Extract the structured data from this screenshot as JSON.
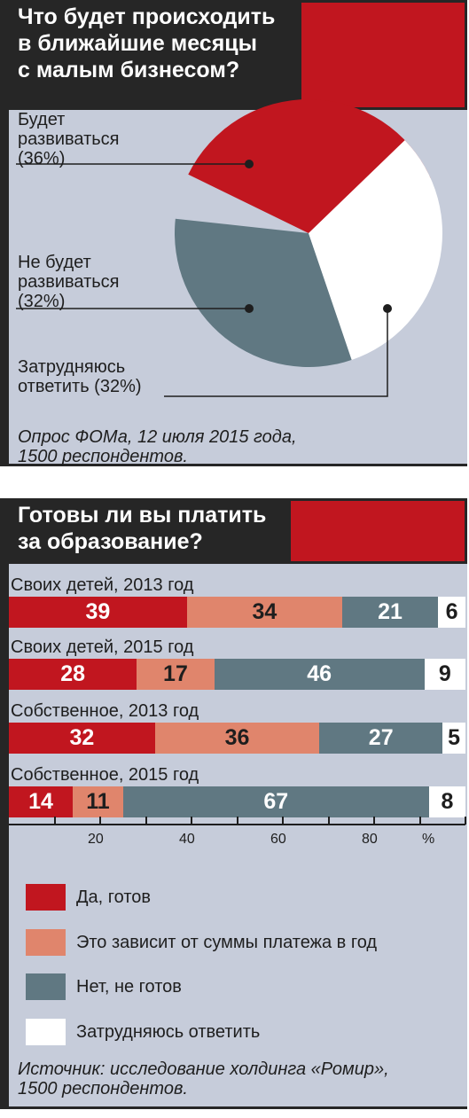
{
  "colors": {
    "red": "#c1161f",
    "salmon": "#e0856c",
    "slate": "#607882",
    "white": "#ffffff",
    "dark": "#262626",
    "panel": "#c6ccda"
  },
  "chart1": {
    "title_line1": "Что будет происходить",
    "title_line2": "в ближайшие месяцы",
    "title_line3": "с малым бизнесом?",
    "labels": [
      {
        "l1": "Будет",
        "l2": "развиваться",
        "l3": "(36%)"
      },
      {
        "l1": "Не будет",
        "l2": "развиваться",
        "l3": "(32%)"
      },
      {
        "l1": "Затрудняюсь",
        "l2": "ответить (32%)"
      }
    ],
    "source_line1": "Опрос ФОМа, 12 июля 2015 года,",
    "source_line2": "1500 респондентов."
  },
  "chart2": {
    "title_line1": "Готовы ли вы платить",
    "title_line2": "за образование?",
    "rows": [
      "Своих детей, 2013 год",
      "Своих детей, 2015 год",
      "Собственное, 2013 год",
      "Собственное, 2015 год"
    ],
    "ticks": [
      "20",
      "40",
      "60",
      "80",
      "%"
    ],
    "legend": [
      "Да, готов",
      "Это зависит от суммы платежа в год",
      "Нет, не готов",
      "Затрудняюсь ответить"
    ],
    "source_line1": "Источник: исследование холдинга «Ромир»,",
    "source_line2": "1500 респондентов."
  },
  "chart_data": [
    {
      "type": "pie",
      "title": "Что будет происходить в ближайшие месяцы с малым бизнесом?",
      "categories": [
        "Будет развиваться",
        "Не будет развиваться",
        "Затрудняюсь ответить"
      ],
      "values": [
        36,
        32,
        32
      ],
      "colors": [
        "#c1161f",
        "#607882",
        "#ffffff"
      ]
    },
    {
      "type": "bar",
      "stacked": true,
      "orientation": "horizontal",
      "title": "Готовы ли вы платить за образование?",
      "categories": [
        "Своих детей, 2013 год",
        "Своих детей, 2015 год",
        "Собственное, 2013 год",
        "Собственное, 2015 год"
      ],
      "series": [
        {
          "name": "Да, готов",
          "values": [
            39,
            28,
            32,
            14
          ]
        },
        {
          "name": "Это зависит от суммы платежа в год",
          "values": [
            34,
            17,
            36,
            11
          ]
        },
        {
          "name": "Нет, не готов",
          "values": [
            21,
            46,
            27,
            67
          ]
        },
        {
          "name": "Затрудняюсь ответить",
          "values": [
            6,
            9,
            5,
            8
          ]
        }
      ],
      "xlim": [
        0,
        100
      ]
    }
  ]
}
